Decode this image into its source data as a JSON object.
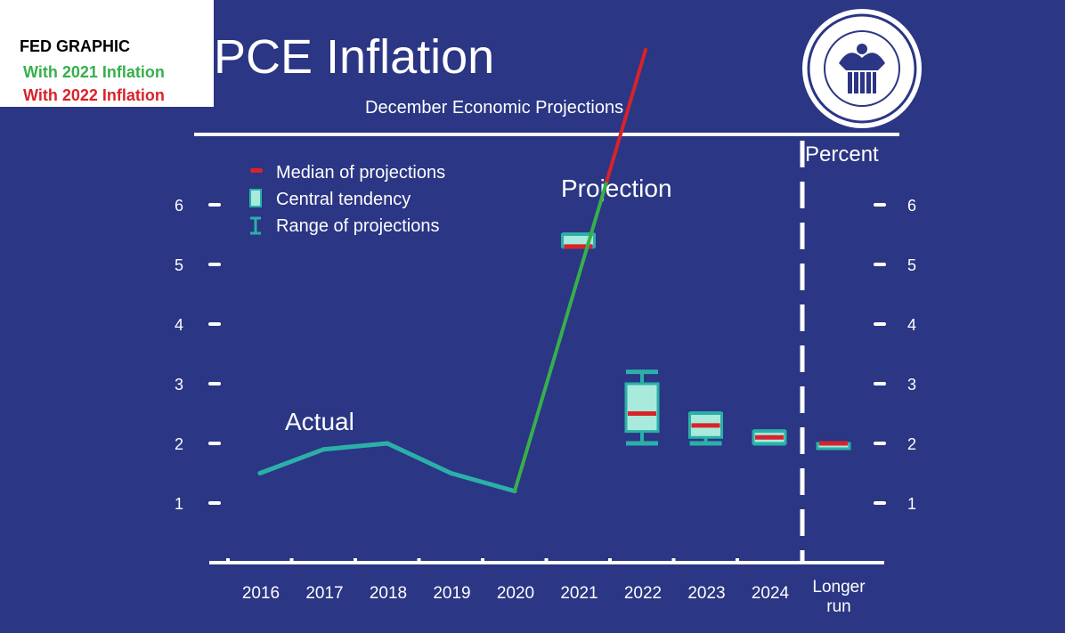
{
  "overlay": {
    "label": "FED GRAPHIC",
    "line_2021": "With 2021 Inflation",
    "line_2022": "With 2022 Inflation"
  },
  "colors": {
    "background": "#2b3684",
    "actual_line": "#2bb0a8",
    "median": "#d8232a",
    "central_tendency": "#a8eadc",
    "range": "#2bb0a8",
    "green_line": "#36b04a",
    "red_line": "#d8232a",
    "axis": "#ffffff"
  },
  "chart_data": {
    "type": "line",
    "title": "PCE Inflation",
    "subtitle": "December Economic Projections",
    "unit_label": "Percent",
    "ylim": [
      0,
      6.8
    ],
    "yticks": [
      "1",
      "2",
      "3",
      "4",
      "5",
      "6"
    ],
    "categories": [
      "2016",
      "2017",
      "2018",
      "2019",
      "2020",
      "2021",
      "2022",
      "2023",
      "2024",
      "Longer run"
    ],
    "legend": [
      "Median of projections",
      "Central tendency",
      "Range of projections"
    ],
    "legend_position": "top-left",
    "annotations": [
      "Actual",
      "Projection"
    ],
    "actual": {
      "name": "Actual",
      "x": [
        "2016",
        "2017",
        "2018",
        "2019",
        "2020"
      ],
      "y": [
        1.5,
        1.9,
        2.0,
        1.5,
        1.2
      ]
    },
    "projections": [
      {
        "x": "2021",
        "median": 5.3,
        "central_low": 5.3,
        "central_high": 5.5,
        "range_low": 5.3,
        "range_high": 5.5
      },
      {
        "x": "2022",
        "median": 2.5,
        "central_low": 2.2,
        "central_high": 3.0,
        "range_low": 2.0,
        "range_high": 3.2
      },
      {
        "x": "2023",
        "median": 2.3,
        "central_low": 2.1,
        "central_high": 2.5,
        "range_low": 2.0,
        "range_high": 2.5
      },
      {
        "x": "2024",
        "median": 2.1,
        "central_low": 2.0,
        "central_high": 2.2,
        "range_low": 2.0,
        "range_high": 2.2
      },
      {
        "x": "Longer run",
        "median": 2.0,
        "central_low": 2.0,
        "central_high": 2.0,
        "range_low": 2.0,
        "range_high": 2.0
      }
    ],
    "overlay_lines": [
      {
        "name": "With 2021 Inflation",
        "color": "#36b04a",
        "x": [
          "2020",
          "2021"
        ],
        "y": [
          1.2,
          6.4
        ]
      },
      {
        "name": "With 2022 Inflation",
        "color": "#d8232a",
        "x": [
          "2021",
          "2022"
        ],
        "y": [
          6.4,
          8.6
        ]
      }
    ],
    "grid": false
  }
}
